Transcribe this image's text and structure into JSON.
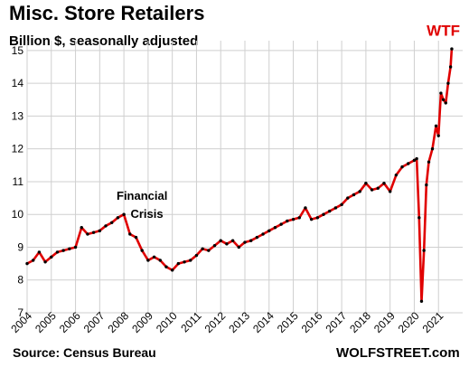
{
  "chart_data": {
    "type": "line",
    "title": "Misc. Store Retailers",
    "subtitle": "Billion $, seasonally adjusted",
    "source": "Source: Census Bureau",
    "brand": "WOLFSTREET.com",
    "ylim": [
      7,
      15.3
    ],
    "yticks": [
      7,
      8,
      9,
      10,
      11,
      12,
      13,
      14,
      15
    ],
    "xticks": [
      "2004",
      "2005",
      "2006",
      "2007",
      "2008",
      "2009",
      "2010",
      "2011",
      "2012",
      "2013",
      "2014",
      "2015",
      "2016",
      "2017",
      "2018",
      "2019",
      "2020",
      "2021"
    ],
    "grid": true,
    "line_color": "#e00000",
    "marker_color": "#000000",
    "annotations": [
      {
        "text": "Financial",
        "x": 2008.75,
        "y": 10.45,
        "color": "#000000"
      },
      {
        "text": "Crisis",
        "x": 2008.95,
        "y": 9.9,
        "color": "#000000"
      },
      {
        "text": "WTF",
        "x": 2021.2,
        "y": 15.45,
        "color": "#e00000"
      }
    ],
    "series": [
      {
        "x": [
          2004.0,
          2004.25,
          2004.5,
          2004.75,
          2005.0,
          2005.25,
          2005.5,
          2005.75,
          2006.0,
          2006.25,
          2006.5,
          2006.75,
          2007.0,
          2007.25,
          2007.5,
          2007.75,
          2008.0,
          2008.25,
          2008.5,
          2008.75,
          2009.0,
          2009.25,
          2009.5,
          2009.75,
          2010.0,
          2010.25,
          2010.5,
          2010.75,
          2011.0,
          2011.25,
          2011.5,
          2011.75,
          2012.0,
          2012.25,
          2012.5,
          2012.75,
          2013.0,
          2013.25,
          2013.5,
          2013.75,
          2014.0,
          2014.25,
          2014.5,
          2014.75,
          2015.0,
          2015.25,
          2015.5,
          2015.75,
          2016.0,
          2016.25,
          2016.5,
          2016.75,
          2017.0,
          2017.25,
          2017.5,
          2017.75,
          2018.0,
          2018.25,
          2018.5,
          2018.75,
          2019.0,
          2019.25,
          2019.5,
          2019.75,
          2020.0,
          2020.1,
          2020.2,
          2020.3,
          2020.4,
          2020.5,
          2020.6,
          2020.75,
          2020.9,
          2021.0,
          2021.1,
          2021.2,
          2021.3,
          2021.4,
          2021.5,
          2021.55
        ],
        "y": [
          8.5,
          8.6,
          8.85,
          8.55,
          8.7,
          8.85,
          8.9,
          8.95,
          9.0,
          9.6,
          9.4,
          9.45,
          9.5,
          9.65,
          9.75,
          9.9,
          10.0,
          9.4,
          9.3,
          8.9,
          8.6,
          8.7,
          8.6,
          8.4,
          8.3,
          8.5,
          8.55,
          8.6,
          8.75,
          8.95,
          8.9,
          9.05,
          9.2,
          9.1,
          9.2,
          9.0,
          9.15,
          9.2,
          9.3,
          9.4,
          9.5,
          9.6,
          9.7,
          9.8,
          9.85,
          9.9,
          10.2,
          9.85,
          9.9,
          10.0,
          10.1,
          10.2,
          10.3,
          10.5,
          10.6,
          10.7,
          10.95,
          10.75,
          10.8,
          10.95,
          10.7,
          11.2,
          11.45,
          11.55,
          11.65,
          11.7,
          9.9,
          7.35,
          8.9,
          10.9,
          11.6,
          12.0,
          12.7,
          12.4,
          13.7,
          13.5,
          13.4,
          14.0,
          14.5,
          15.05
        ]
      }
    ]
  }
}
